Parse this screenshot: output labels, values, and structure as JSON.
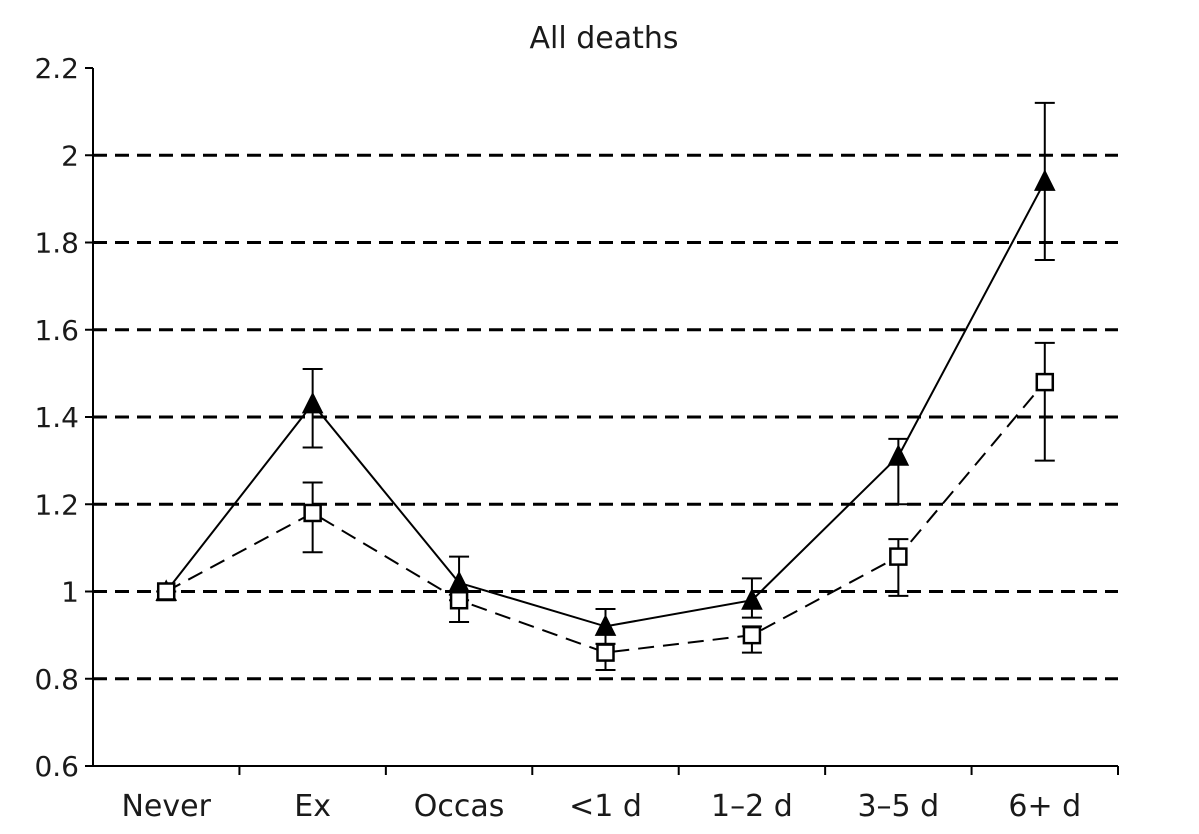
{
  "chart_data": {
    "type": "line",
    "title": "All deaths",
    "xlabel": "",
    "ylabel": "",
    "categories": [
      "Never",
      "Ex",
      "Occas",
      "<1 d",
      "1–2 d",
      "3–5 d",
      "6+ d"
    ],
    "ylim": [
      0.6,
      2.2
    ],
    "yticks": [
      0.6,
      0.8,
      1,
      1.2,
      1.4,
      1.6,
      1.8,
      2,
      2.2
    ],
    "ytick_labels": [
      "0.6",
      "0.8",
      "1",
      "1.2",
      "1.4",
      "1.6",
      "1.8",
      "2",
      "2.2"
    ],
    "gridlines": [
      0.8,
      1,
      1.2,
      1.4,
      1.6,
      1.8,
      2
    ],
    "series": [
      {
        "name": "filled-triangle",
        "line_style": "solid",
        "marker": "triangle-filled",
        "values": [
          1.0,
          1.43,
          1.02,
          0.92,
          0.98,
          1.31,
          1.94
        ],
        "lower": [
          1.0,
          1.33,
          0.98,
          0.88,
          0.94,
          1.2,
          1.76
        ],
        "upper": [
          1.0,
          1.51,
          1.08,
          0.96,
          1.03,
          1.35,
          2.12
        ]
      },
      {
        "name": "open-square",
        "line_style": "dashed",
        "marker": "square-open",
        "values": [
          1.0,
          1.18,
          0.98,
          0.86,
          0.9,
          1.08,
          1.48
        ],
        "lower": [
          0.98,
          1.09,
          0.93,
          0.82,
          0.86,
          0.99,
          1.3
        ],
        "upper": [
          1.0,
          1.25,
          1.0,
          0.88,
          0.92,
          1.12,
          1.57
        ]
      }
    ]
  }
}
